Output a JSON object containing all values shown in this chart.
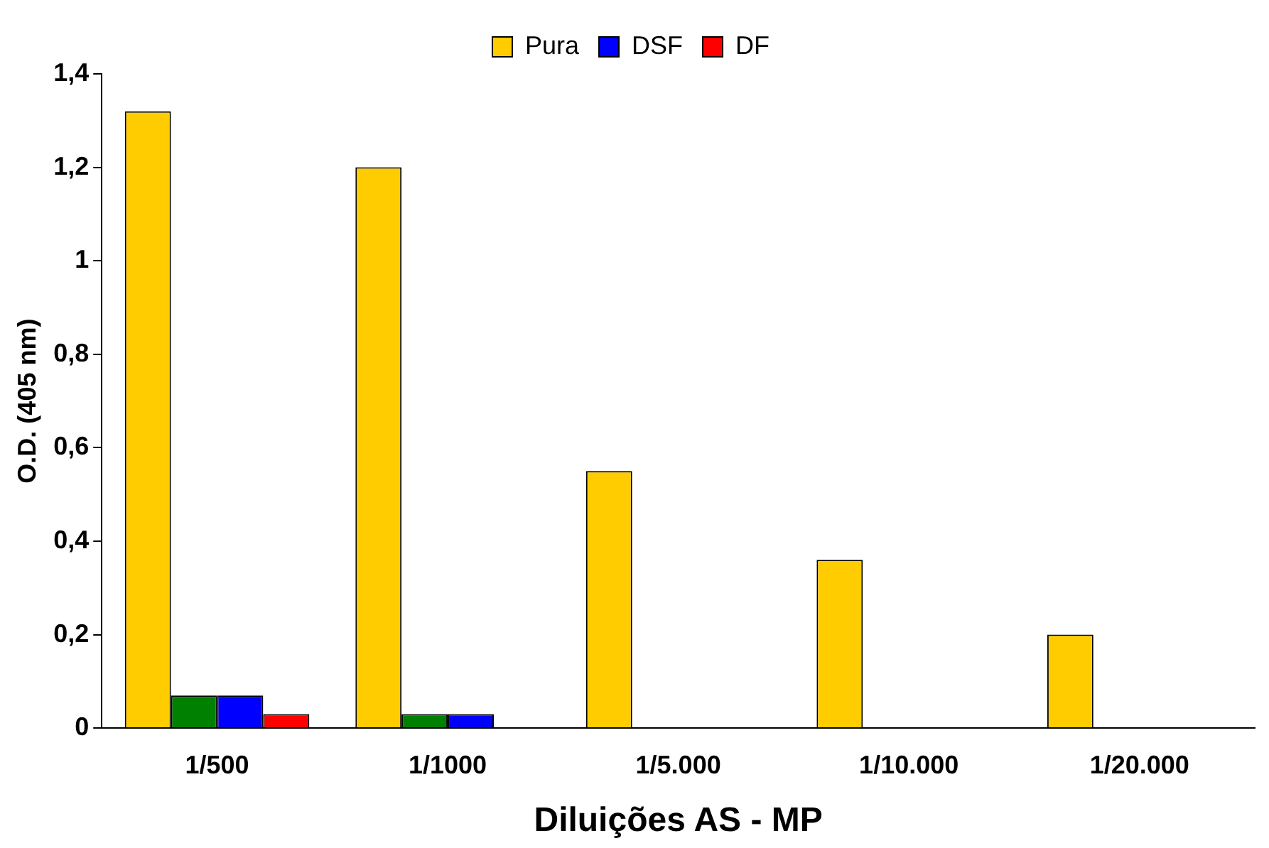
{
  "chart_data": {
    "type": "bar",
    "xlabel": "Diluições AS - MP",
    "ylabel": "O.D. (405 nm)",
    "categories": [
      "1/500",
      "1/1000",
      "1/5.000",
      "1/10.000",
      "1/20.000"
    ],
    "series": [
      {
        "name": "Pura",
        "color": "#ffcc00",
        "values": [
          1.32,
          1.2,
          0.55,
          0.36,
          0.2
        ]
      },
      {
        "color": "#008000",
        "values": [
          0.07,
          0.03,
          0,
          0,
          0
        ]
      },
      {
        "name": "DSF",
        "color": "#0000ff",
        "values": [
          0.07,
          0.03,
          0,
          0,
          0
        ]
      },
      {
        "name": "DF",
        "color": "#ff0000",
        "values": [
          0.03,
          0,
          0,
          0,
          0
        ]
      }
    ],
    "ylim": [
      0,
      1.4
    ],
    "yticks": [
      0,
      {
        "value": 0.2,
        "label": "0,2"
      },
      {
        "value": 0.4,
        "label": "0,4"
      },
      {
        "value": 0.6,
        "label": "0,6"
      },
      {
        "value": 0.8,
        "label": "0,8"
      },
      1,
      {
        "value": 1.2,
        "label": "1,2"
      },
      {
        "value": 1.4,
        "label": "1,4"
      }
    ],
    "grid": false,
    "legend": "top"
  }
}
